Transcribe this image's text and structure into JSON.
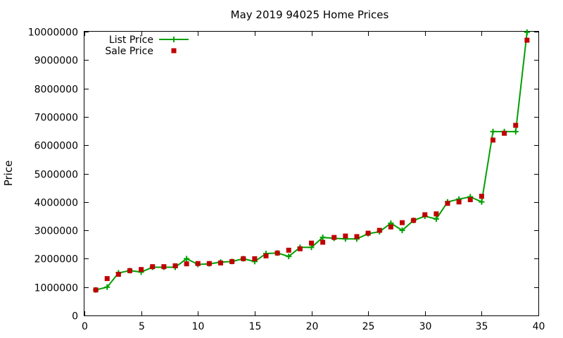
{
  "chart_data": {
    "type": "line",
    "title": "May 2019 94025 Home Prices",
    "xlabel": "",
    "ylabel": "Price",
    "xlim": [
      0,
      40
    ],
    "ylim": [
      0,
      10000000
    ],
    "xticks": [
      0,
      5,
      10,
      15,
      20,
      25,
      30,
      35,
      40
    ],
    "yticks": [
      0,
      1000000,
      2000000,
      3000000,
      4000000,
      5000000,
      6000000,
      7000000,
      8000000,
      9000000,
      10000000
    ],
    "grid": false,
    "legend_position": "top-left",
    "series": [
      {
        "name": "List Price",
        "style": "line-with-plus-markers",
        "color": "#00a000",
        "x": [
          1,
          2,
          3,
          4,
          5,
          6,
          7,
          8,
          9,
          10,
          11,
          12,
          13,
          14,
          15,
          16,
          17,
          18,
          19,
          20,
          21,
          22,
          23,
          24,
          25,
          26,
          27,
          28,
          29,
          30,
          31,
          32,
          33,
          34,
          35,
          36,
          37,
          38,
          39
        ],
        "y": [
          900000,
          1000000,
          1500000,
          1580000,
          1530000,
          1700000,
          1700000,
          1700000,
          2000000,
          1800000,
          1820000,
          1880000,
          1900000,
          2000000,
          1900000,
          2180000,
          2200000,
          2080000,
          2400000,
          2400000,
          2750000,
          2720000,
          2700000,
          2700000,
          2880000,
          2950000,
          3250000,
          3000000,
          3350000,
          3500000,
          3400000,
          4000000,
          4100000,
          4180000,
          4000000,
          6480000,
          6480000,
          6480000,
          9980000
        ]
      },
      {
        "name": "Sale Price",
        "style": "square-markers",
        "color": "#c00000",
        "x": [
          1,
          2,
          3,
          4,
          5,
          6,
          7,
          8,
          9,
          10,
          11,
          12,
          13,
          14,
          15,
          16,
          17,
          18,
          19,
          20,
          21,
          22,
          23,
          24,
          25,
          26,
          27,
          28,
          29,
          30,
          31,
          32,
          33,
          34,
          35,
          36,
          37,
          38,
          39
        ],
        "y": [
          900000,
          1300000,
          1450000,
          1580000,
          1620000,
          1720000,
          1720000,
          1750000,
          1820000,
          1830000,
          1830000,
          1850000,
          1900000,
          2000000,
          2000000,
          2100000,
          2200000,
          2300000,
          2350000,
          2550000,
          2580000,
          2750000,
          2800000,
          2780000,
          2900000,
          3000000,
          3120000,
          3270000,
          3350000,
          3550000,
          3580000,
          3950000,
          4000000,
          4080000,
          4200000,
          6180000,
          6420000,
          6700000,
          9700000
        ]
      }
    ]
  }
}
